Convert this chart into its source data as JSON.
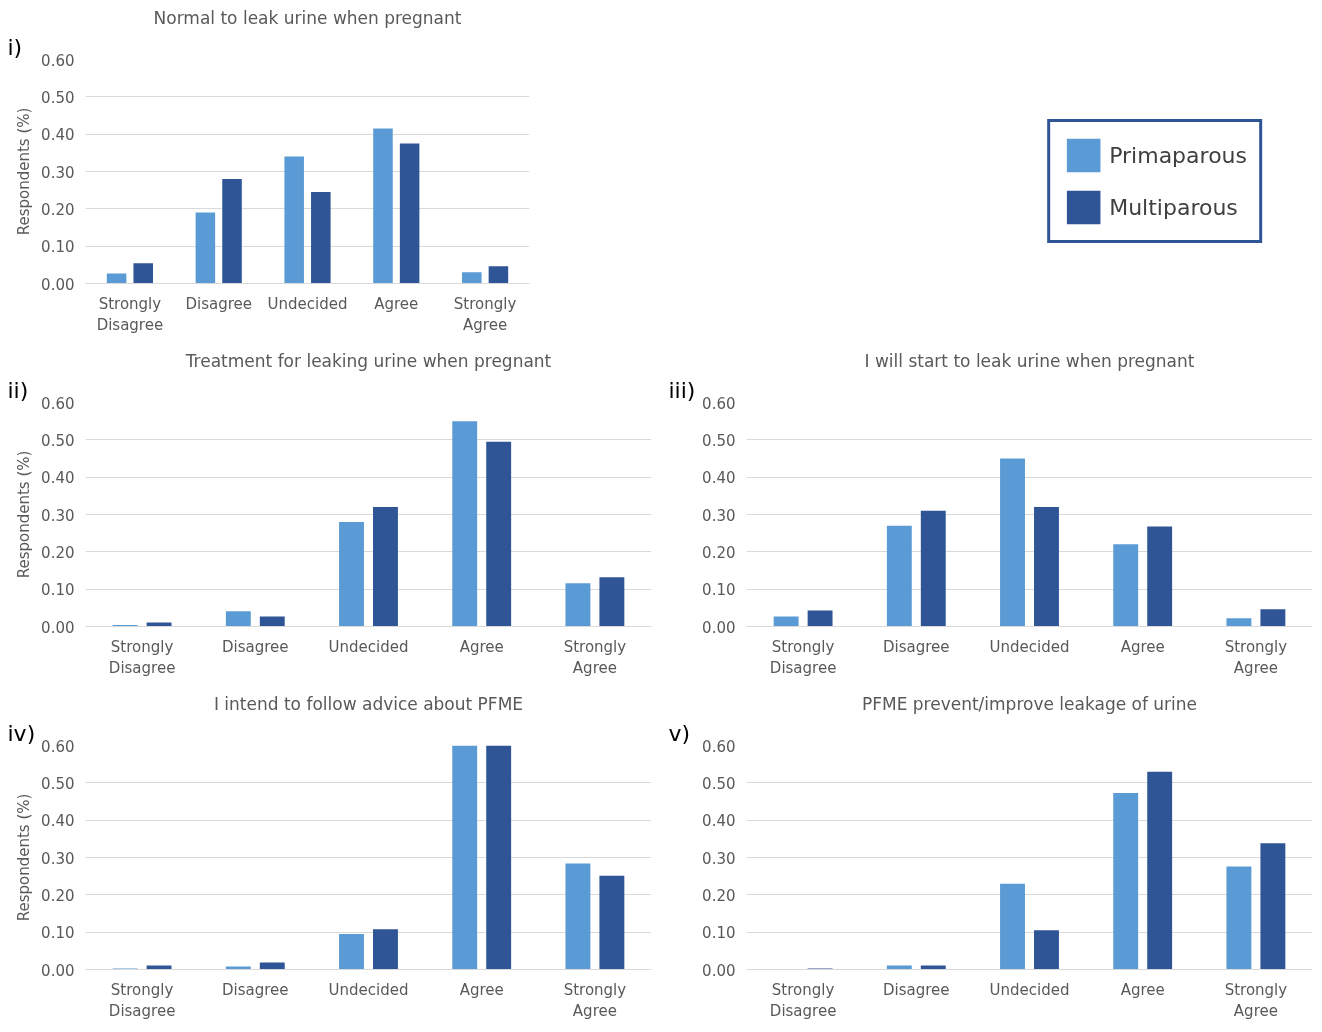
{
  "chart_data": [
    {
      "type": "bar",
      "title": "Normal to leak urine when pregnant",
      "ylabel": "Respondents (%)",
      "annotations": [
        "i)"
      ],
      "categories": [
        "Strongly\nDisagree",
        "Disagree",
        "Undecided",
        "Agree",
        "Strongly\nAgree"
      ],
      "series": [
        {
          "name": "Primaparous",
          "color": "#5b9bd5",
          "values": [
            0.027,
            0.19,
            0.34,
            0.415,
            0.03
          ]
        },
        {
          "name": "Multiparous",
          "color": "#2f5597",
          "values": [
            0.054,
            0.28,
            0.245,
            0.375,
            0.046
          ]
        }
      ],
      "ylim": [
        0,
        0.6
      ],
      "yticks": [
        {
          "value": 0,
          "label": "0.00"
        },
        {
          "value": 0.1,
          "label": "0.10"
        },
        {
          "value": 0.2,
          "label": "0.20"
        },
        {
          "value": 0.3,
          "label": "0.30"
        },
        {
          "value": 0.4,
          "label": "0.40"
        },
        {
          "value": 0.5,
          "label": "0.50"
        },
        {
          "value": 0.6,
          "label": "0.60"
        }
      ],
      "grid": "y",
      "legend": "right"
    },
    {
      "type": "bar",
      "title": "Treatment for leaking urine when pregnant",
      "ylabel": "Respondents (%)",
      "annotations": [
        "ii)"
      ],
      "categories": [
        "Strongly\nDisagree",
        "Disagree",
        "Undecided",
        "Agree",
        "Strongly\nAgree"
      ],
      "series": [
        {
          "color": "#5b9bd5",
          "values": [
            0.004,
            0.041,
            0.28,
            0.55,
            0.116
          ]
        },
        {
          "color": "#2f5597",
          "values": [
            0.011,
            0.027,
            0.32,
            0.495,
            0.132
          ]
        }
      ],
      "ylim": [
        0,
        0.6
      ],
      "yticks": [
        {
          "value": 0,
          "label": "0.00"
        },
        {
          "value": 0.1,
          "label": "0.10"
        },
        {
          "value": 0.2,
          "label": "0.20"
        },
        {
          "value": 0.3,
          "label": "0.30"
        },
        {
          "value": 0.4,
          "label": "0.40"
        },
        {
          "value": 0.5,
          "label": "0.50"
        },
        {
          "value": 0.6,
          "label": "0.60"
        }
      ],
      "grid": "y"
    },
    {
      "type": "bar",
      "title": "I will start to leak urine when pregnant",
      "annotations": [
        "iii)"
      ],
      "categories": [
        "Strongly\nDisagree",
        "Disagree",
        "Undecided",
        "Agree",
        "Strongly\nAgree"
      ],
      "series": [
        {
          "color": "#5b9bd5",
          "values": [
            0.027,
            0.27,
            0.45,
            0.22,
            0.022
          ]
        },
        {
          "color": "#2f5597",
          "values": [
            0.043,
            0.31,
            0.32,
            0.268,
            0.046
          ]
        }
      ],
      "ylim": [
        0,
        0.6
      ],
      "yticks": [
        {
          "value": 0,
          "label": "0.00"
        },
        {
          "value": 0.1,
          "label": "0.10"
        },
        {
          "value": 0.2,
          "label": "0.20"
        },
        {
          "value": 0.3,
          "label": "0.30"
        },
        {
          "value": 0.4,
          "label": "0.40"
        },
        {
          "value": 0.5,
          "label": "0.50"
        },
        {
          "value": 0.6,
          "label": "0.60"
        }
      ],
      "grid": "y"
    },
    {
      "type": "bar",
      "title": "I intend to follow advice about PFME",
      "ylabel": "Respondents (%)",
      "annotations": [
        "iv)"
      ],
      "categories": [
        "Strongly\nDisagree",
        "Disagree",
        "Undecided",
        "Agree",
        "Strongly\nAgree"
      ],
      "series": [
        {
          "color": "#5b9bd5",
          "values": [
            0.003,
            0.008,
            0.095,
            0.6,
            0.284
          ]
        },
        {
          "color": "#2f5597",
          "values": [
            0.011,
            0.019,
            0.108,
            0.6,
            0.251
          ]
        }
      ],
      "ylim": [
        0,
        0.6
      ],
      "yticks": [
        {
          "value": 0,
          "label": "0.00"
        },
        {
          "value": 0.1,
          "label": "0.10"
        },
        {
          "value": 0.2,
          "label": "0.20"
        },
        {
          "value": 0.3,
          "label": "0.30"
        },
        {
          "value": 0.4,
          "label": "0.40"
        },
        {
          "value": 0.5,
          "label": "0.50"
        },
        {
          "value": 0.6,
          "label": "0.60"
        }
      ],
      "grid": "y"
    },
    {
      "type": "bar",
      "title": "PFME prevent/improve leakage of urine",
      "annotations": [
        "v)"
      ],
      "categories": [
        "Strongly\nDisagree",
        "Disagree",
        "Undecided",
        "Agree",
        "Strongly\nAgree"
      ],
      "series": [
        {
          "color": "#5b9bd5",
          "values": [
            0,
            0.011,
            0.23,
            0.473,
            0.276
          ]
        },
        {
          "color": "#2f5597",
          "values": [
            0.003,
            0.011,
            0.105,
            0.53,
            0.338
          ]
        }
      ],
      "ylim": [
        0,
        0.6
      ],
      "yticks": [
        {
          "value": 0,
          "label": "0.00"
        },
        {
          "value": 0.1,
          "label": "0.10"
        },
        {
          "value": 0.2,
          "label": "0.20"
        },
        {
          "value": 0.3,
          "label": "0.30"
        },
        {
          "value": 0.4,
          "label": "0.40"
        },
        {
          "value": 0.5,
          "label": "0.50"
        },
        {
          "value": 0.6,
          "label": "0.60"
        }
      ],
      "grid": "y"
    }
  ]
}
